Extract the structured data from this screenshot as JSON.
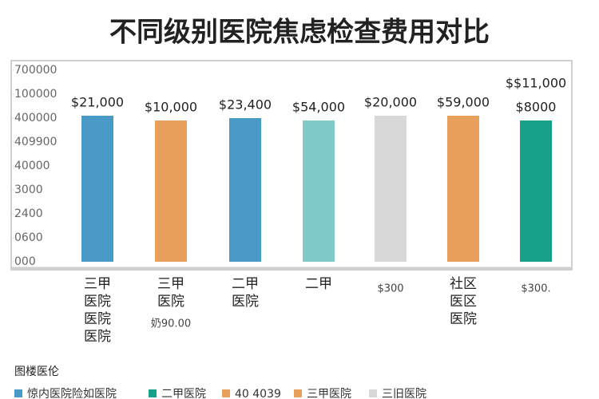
{
  "chart_data": {
    "type": "bar",
    "title": "不同级别医院焦虑检查费用对比",
    "categories": [
      [
        "三甲",
        "医院",
        "医院",
        "医院"
      ],
      [
        "三甲",
        "医院",
        "奶90.00"
      ],
      [
        "二甲",
        "医院"
      ],
      [
        "二甲"
      ],
      [
        "$300"
      ],
      [
        "社区",
        "医区",
        "医院"
      ],
      [
        "$300."
      ]
    ],
    "values": [
      6.1,
      5.9,
      6.0,
      5.9,
      6.1,
      6.1,
      5.9
    ],
    "colors": [
      "#4a9ac8",
      "#e8a05c",
      "#4a9ac8",
      "#7fc9c9",
      "#d8d8d8",
      "#e8a05c",
      "#17a08a"
    ],
    "bar_labels": [
      [
        "$21,000"
      ],
      [
        "$10,000"
      ],
      [
        "$23,400"
      ],
      [
        "$54,000"
      ],
      [
        "$20,000"
      ],
      [
        "$59,000"
      ],
      [
        "$$11,000",
        "$8000"
      ]
    ],
    "ylim": [
      0,
      8
    ],
    "yticks": [
      {
        "value": 0,
        "label": "000"
      },
      {
        "value": 1,
        "label": "0600"
      },
      {
        "value": 2,
        "label": "2400"
      },
      {
        "value": 3,
        "label": "3000"
      },
      {
        "value": 4,
        "label": "40000"
      },
      {
        "value": 5,
        "label": "409900"
      },
      {
        "value": 6,
        "label": "400000"
      },
      {
        "value": 7,
        "label": "100000"
      },
      {
        "value": 8,
        "label": "700000"
      }
    ],
    "grid": false,
    "legend": {
      "title": "图楼医伦",
      "items": [
        {
          "name": "惊内医院险如医院",
          "color": "#4a9ac8"
        },
        {
          "name": "二甲医院",
          "color": "#17a08a"
        },
        {
          "name": "40 4039",
          "color": "#e8a05c"
        },
        {
          "name": "三甲医院",
          "color": "#e8a05c"
        },
        {
          "name": "三旧医院",
          "color": "#d8d8d8"
        }
      ]
    }
  }
}
